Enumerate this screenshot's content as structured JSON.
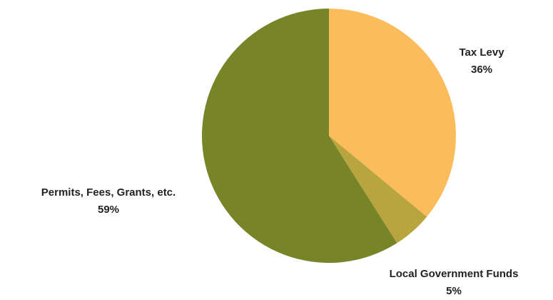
{
  "chart_data": {
    "type": "pie",
    "title": "",
    "slices": [
      {
        "label": "Tax Levy",
        "value": 36,
        "value_label": "36%",
        "color": "#FBBC5C"
      },
      {
        "label": "Local Government Funds",
        "value": 5,
        "value_label": "5%",
        "color": "#B8A53E"
      },
      {
        "label": "Permits, Fees, Grants, etc.",
        "value": 59,
        "value_label": "59%",
        "color": "#788428"
      }
    ],
    "start_angle": "12 o'clock",
    "direction": "clockwise",
    "legend": "none"
  }
}
